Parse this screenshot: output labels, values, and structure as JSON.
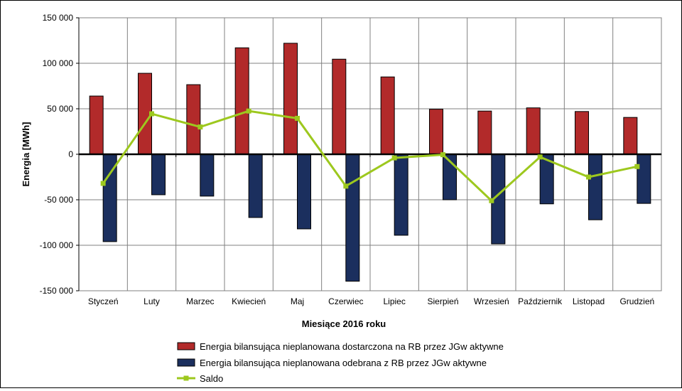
{
  "chart_data": {
    "type": "bar",
    "xlabel": "Miesiące 2016  roku",
    "ylabel": "Energia [MWh]",
    "ylim": [
      -150000,
      150000
    ],
    "yticks": [
      150000,
      100000,
      50000,
      0,
      -50000,
      -100000,
      -150000
    ],
    "ytick_labels": [
      "150 000",
      "100 000",
      "50 000",
      "0",
      "-50 000",
      "-100 000",
      "-150 000"
    ],
    "grid": true,
    "legend_position": "bottom",
    "categories": [
      "Styczeń",
      "Luty",
      "Marzec",
      "Kwiecień",
      "Maj",
      "Czerwiec",
      "Lipiec",
      "Sierpień",
      "Wrzesień",
      "Październik",
      "Listopad",
      "Grudzień"
    ],
    "series": [
      {
        "name": "Energia bilansująca nieplanowana dostarczona na RB przez JGw aktywne",
        "type": "bar",
        "color": "#B22A2A",
        "values": [
          64000,
          89000,
          76500,
          117000,
          122000,
          104500,
          85000,
          49500,
          47500,
          51000,
          47000,
          40500
        ]
      },
      {
        "name": "Energia bilansująca nieplanowana odebrana z RB przez JGw aktywne",
        "type": "bar",
        "color": "#1B2F5E",
        "values": [
          -96000,
          -44500,
          -46000,
          -69500,
          -82000,
          -139500,
          -89000,
          -50000,
          -98500,
          -54500,
          -72000,
          -54000
        ]
      },
      {
        "name": "Saldo",
        "type": "line",
        "color": "#9DC81E",
        "values": [
          -32000,
          44500,
          30000,
          47500,
          39500,
          -35000,
          -4000,
          -500,
          -51000,
          -3000,
          -25000,
          -13500
        ]
      }
    ]
  }
}
